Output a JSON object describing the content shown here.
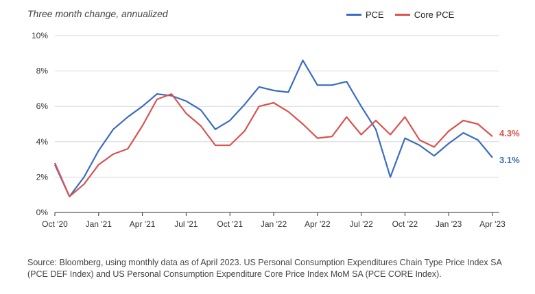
{
  "chart_data": {
    "type": "line",
    "subtitle": "Three month change, annualized",
    "x": [
      "Oct '20",
      "Nov '20",
      "Dec '20",
      "Jan '21",
      "Feb '21",
      "Mar '21",
      "Apr '21",
      "May '21",
      "Jun '21",
      "Jul '21",
      "Aug '21",
      "Sep '21",
      "Oct '21",
      "Nov '21",
      "Dec '21",
      "Jan '22",
      "Feb '22",
      "Mar '22",
      "Apr '22",
      "May '22",
      "Jun '22",
      "Jul '22",
      "Aug '22",
      "Sep '22",
      "Oct '22",
      "Nov '22",
      "Dec '22",
      "Jan '23",
      "Feb '23",
      "Mar '23",
      "Apr '23"
    ],
    "xticks": [
      "Oct '20",
      "Jan '21",
      "Apr '21",
      "Jul '21",
      "Oct '21",
      "Jan '22",
      "Apr '22",
      "Jul '22",
      "Oct '22",
      "Jan '23",
      "Apr '23"
    ],
    "yticks": [
      "0%",
      "2%",
      "4%",
      "6%",
      "8%",
      "10%"
    ],
    "ylim": [
      0,
      10
    ],
    "series": [
      {
        "name": "PCE",
        "color": "#3a6bc4",
        "end_label": "3.1%",
        "values": [
          2.7,
          0.9,
          2.0,
          3.5,
          4.7,
          5.4,
          6.0,
          6.7,
          6.6,
          6.3,
          5.8,
          4.7,
          5.2,
          6.1,
          7.1,
          6.9,
          6.8,
          8.6,
          7.2,
          7.2,
          7.4,
          6.0,
          4.7,
          2.0,
          4.2,
          3.8,
          3.2,
          3.9,
          4.5,
          4.1,
          3.1
        ]
      },
      {
        "name": "Core PCE",
        "color": "#d9534f",
        "end_label": "4.3%",
        "values": [
          2.8,
          0.9,
          1.6,
          2.7,
          3.3,
          3.6,
          4.9,
          6.4,
          6.7,
          5.6,
          4.9,
          3.8,
          3.8,
          4.6,
          6.0,
          6.2,
          5.7,
          5.0,
          4.2,
          4.3,
          5.4,
          4.4,
          5.2,
          4.4,
          5.4,
          4.1,
          3.7,
          4.6,
          5.2,
          5.0,
          4.3
        ]
      }
    ]
  },
  "source": "Source: Bloomberg, using monthly data as of April 2023. US Personal Consumption Expenditures Chain Type Price Index SA (PCE DEF Index) and US Personal Consumption Expenditure Core Price Index MoM SA (PCE CORE Index)."
}
